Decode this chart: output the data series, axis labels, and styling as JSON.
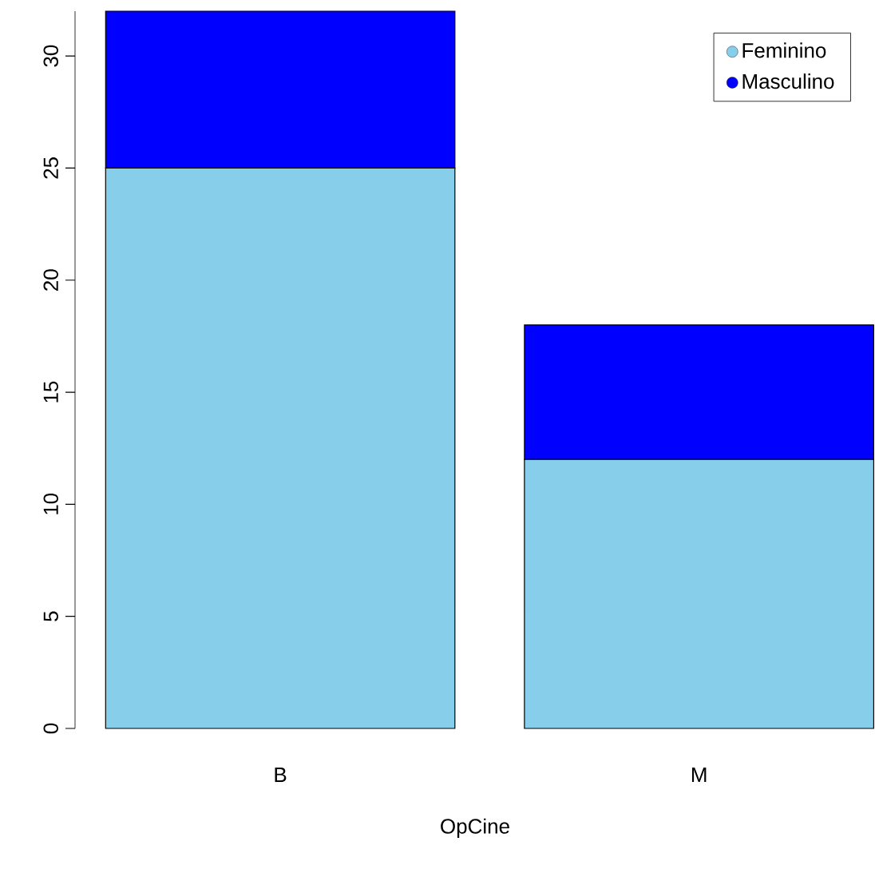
{
  "chart_data": {
    "type": "bar",
    "xlabel": "OpCine",
    "categories": [
      "B",
      "M"
    ],
    "stacked": true,
    "series": [
      {
        "name": "Feminino",
        "color": "#87ceeb",
        "values": [
          25,
          12
        ]
      },
      {
        "name": "Masculino",
        "color": "#0000ff",
        "values": [
          7,
          6
        ]
      }
    ],
    "ylim": [
      0,
      32
    ],
    "yticks": [
      0,
      5,
      10,
      15,
      20,
      25,
      30
    ],
    "legend": "top right"
  }
}
